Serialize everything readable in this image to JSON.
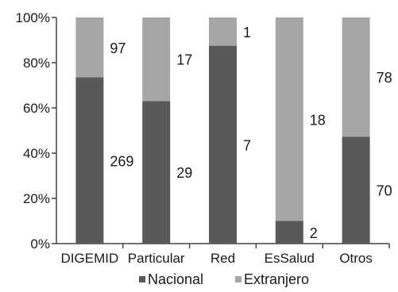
{
  "chart_data": {
    "type": "bar",
    "stacked": true,
    "normalized": true,
    "categories": [
      "DIGEMID",
      "Particular",
      "Red",
      "EsSalud",
      "Otros"
    ],
    "series": [
      {
        "name": "Nacional",
        "values": [
          269,
          29,
          7,
          2,
          70
        ],
        "color": "#595959"
      },
      {
        "name": "Extranjero",
        "values": [
          97,
          17,
          1,
          18,
          78
        ],
        "color": "#a6a6a6"
      }
    ],
    "y_ticks": [
      "0%",
      "20%",
      "40%",
      "60%",
      "80%",
      "100%"
    ],
    "ylim": [
      0,
      100
    ],
    "grid": false,
    "legend_position": "bottom"
  }
}
